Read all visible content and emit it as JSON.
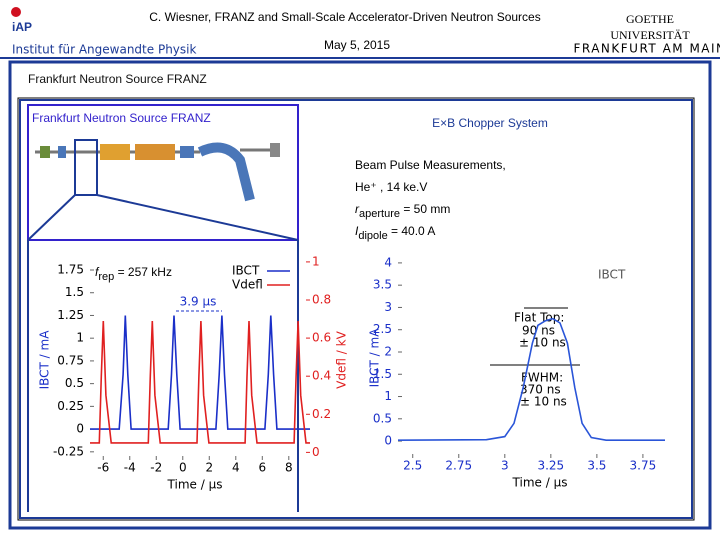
{
  "header": {
    "title": "C. Wiesner, FRANZ and Small-Scale Accelerator-Driven Neutron Sources",
    "date": "May 5, 2015",
    "logo_left": "iAP",
    "logo_left_sub": "Institut für Angewandte Physik",
    "logo_right": [
      "GOETHE",
      "UNIVERSITÄT",
      "FRANKFURT AM MAIN"
    ]
  },
  "slide": {
    "title": "Frankfurt Neutron Source FRANZ",
    "figure_label": "Frankfurt Neutron Source  FRANZ",
    "heading": "E×B Chopper System",
    "notes": {
      "line1": "Beam Pulse Measurements,",
      "line2": "He⁺ , 14 ke.V",
      "aperture": {
        "symbol": "r",
        "subscript": "aperture",
        "text": " = 50 mm"
      },
      "dipole": {
        "symbol": "I",
        "subscript": "dipole",
        "text": " =  40.0 A"
      }
    }
  },
  "chart_data": [
    {
      "type": "line",
      "xlabel": "Time / µs",
      "ylabel": "IBCT / mA",
      "y2label": "Vdefl / kV",
      "annotations": {
        "frep": {
          "symbol": "f",
          "subscript": "rep",
          "text": " = 257 kHz"
        },
        "period": "3.9 µs"
      },
      "xlim": [
        -7,
        9.6
      ],
      "xticks": [
        -6,
        -4,
        -2,
        0,
        2,
        4,
        6,
        8
      ],
      "ylim": [
        -0.34,
        1.86
      ],
      "yticks": [
        -0.25,
        0,
        0.25,
        0.5,
        0.75,
        1,
        1.25,
        1.5,
        1.75
      ],
      "y2lim": [
        -0.04,
        1.01
      ],
      "y2ticks": [
        0,
        0.2,
        0.4,
        0.6,
        0.8,
        1
      ],
      "series": [
        {
          "name": "IBCT",
          "color": "#1a2fc8",
          "x": [
            -7,
            -4.8,
            -4.5,
            -4.34,
            -4.15,
            -3.9,
            -1.1,
            -0.85,
            -0.66,
            -0.45,
            -0.2,
            2.5,
            2.75,
            2.95,
            3.15,
            3.4,
            6.2,
            6.45,
            6.64,
            6.85,
            7.1,
            9.6
          ],
          "values": [
            0,
            0,
            0.6,
            1.25,
            0.6,
            0,
            0,
            0.6,
            1.25,
            0.6,
            0,
            0,
            0.6,
            1.25,
            0.6,
            0,
            0,
            0.6,
            1.25,
            0.6,
            0,
            0
          ]
        },
        {
          "name": "Vdefl",
          "color": "#e02020",
          "axis": "y2",
          "x": [
            -7,
            -6.3,
            -6.15,
            -6.0,
            -5.8,
            -5.4,
            -2.6,
            -2.45,
            -2.3,
            -2.1,
            -1.7,
            1.07,
            1.22,
            1.37,
            1.57,
            1.97,
            4.7,
            4.85,
            5.0,
            5.2,
            5.6,
            8.4,
            8.55,
            8.7,
            8.9,
            9.3,
            9.6
          ],
          "values": [
            0.05,
            0.05,
            0.4,
            0.69,
            0.3,
            0.05,
            0.05,
            0.4,
            0.69,
            0.3,
            0.05,
            0.05,
            0.4,
            0.69,
            0.3,
            0.05,
            0.05,
            0.4,
            0.69,
            0.3,
            0.05,
            0.05,
            0.4,
            0.69,
            0.3,
            0.05,
            0.05
          ]
        }
      ]
    },
    {
      "type": "line",
      "xlabel": "Time / µs",
      "ylabel": "IBCT / mA",
      "annotations": {
        "flat": [
          "Flat Top:",
          "90 ns",
          "± 10 ns"
        ],
        "fwhm": [
          "FWHM:",
          "370 ns",
          "± 10 ns"
        ]
      },
      "xlim": [
        2.42,
        3.87
      ],
      "xticks": [
        2.5,
        2.75,
        3,
        3.25,
        3.5,
        3.75
      ],
      "ylim": [
        -0.38,
        4.11
      ],
      "yticks": [
        0,
        0.5,
        1,
        1.5,
        2,
        2.5,
        3,
        3.5,
        4
      ],
      "series": [
        {
          "name": "IBCT",
          "color": "#2a55d8",
          "x": [
            2.42,
            2.9,
            3.0,
            3.05,
            3.1,
            3.15,
            3.18,
            3.22,
            3.26,
            3.3,
            3.34,
            3.38,
            3.42,
            3.47,
            3.55,
            3.87
          ],
          "values": [
            0.02,
            0.03,
            0.1,
            0.4,
            1.2,
            2.2,
            2.6,
            2.7,
            2.75,
            2.65,
            2.2,
            1.2,
            0.4,
            0.08,
            0.02,
            0.02
          ]
        }
      ]
    }
  ]
}
